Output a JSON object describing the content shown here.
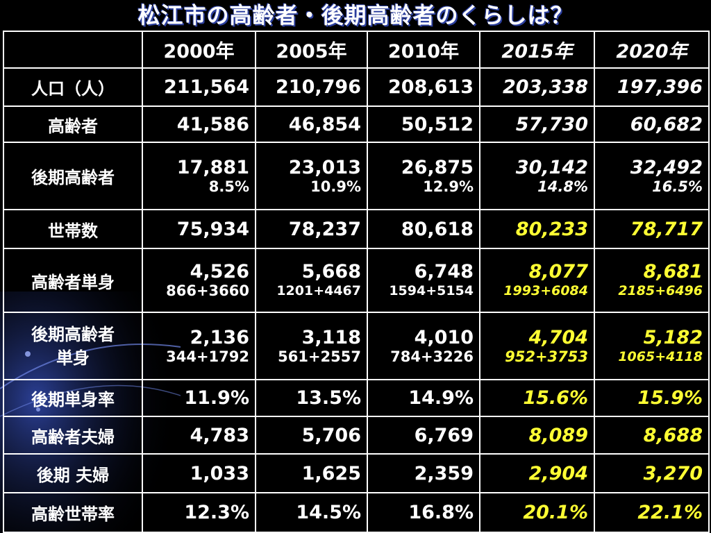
{
  "title": "松江市の高齢者・後期高齢者のくらしは？",
  "header": {
    "corner": "",
    "years": [
      "2000年",
      "2005年",
      "2010年",
      "2015年",
      "2020年"
    ]
  },
  "rows": {
    "population": {
      "label": "人口（人）",
      "values": [
        "211,564",
        "210,796",
        "208,613",
        "203,338",
        "197,396"
      ]
    },
    "elderly": {
      "label": "高齢者",
      "values": [
        "41,586",
        "46,854",
        "50,512",
        "57,730",
        "60,682"
      ]
    },
    "late_elderly": {
      "label": "後期高齢者",
      "values": [
        "17,881",
        "23,013",
        "26,875",
        "30,142",
        "32,492"
      ],
      "subs": [
        "8.5%",
        "10.9%",
        "12.9%",
        "14.8%",
        "16.5%"
      ]
    },
    "households": {
      "label": "世帯数",
      "values": [
        "75,934",
        "78,237",
        "80,618",
        "80,233",
        "78,717"
      ]
    },
    "elderly_single": {
      "label": "高齢者単身",
      "values": [
        "4,526",
        "5,668",
        "6,748",
        "8,077",
        "8,681"
      ],
      "subs": [
        "866+3660",
        "1201+4467",
        "1594+5154",
        "1993+6084",
        "2185+6496"
      ]
    },
    "late_single": {
      "label_line1": "後期高齢者",
      "label_line2": "単身",
      "values": [
        "2,136",
        "3,118",
        "4,010",
        "4,704",
        "5,182"
      ],
      "subs": [
        "344+1792",
        "561+2557",
        "784+3226",
        "952+3753",
        "1065+4118"
      ]
    },
    "late_single_rate": {
      "label": "後期単身率",
      "values": [
        "11.9%",
        "13.5%",
        "14.9%",
        "15.6%",
        "15.9%"
      ]
    },
    "elderly_couple": {
      "label": "高齢者夫婦",
      "values": [
        "4,783",
        "5,706",
        "6,769",
        "8,089",
        "8,688"
      ]
    },
    "late_couple": {
      "label": "後期 夫婦",
      "values": [
        "1,033",
        "1,625",
        "2,359",
        "2,904",
        "3,270"
      ]
    },
    "elderly_household_rate": {
      "label": "高齢世帯率",
      "values": [
        "12.3%",
        "14.5%",
        "16.8%",
        "20.1%",
        "22.1%"
      ]
    }
  },
  "colors": {
    "background": "#000000",
    "text": "#ffffff",
    "projection_highlight": "#ffff33",
    "title_shadow": "#2c3f9e"
  }
}
